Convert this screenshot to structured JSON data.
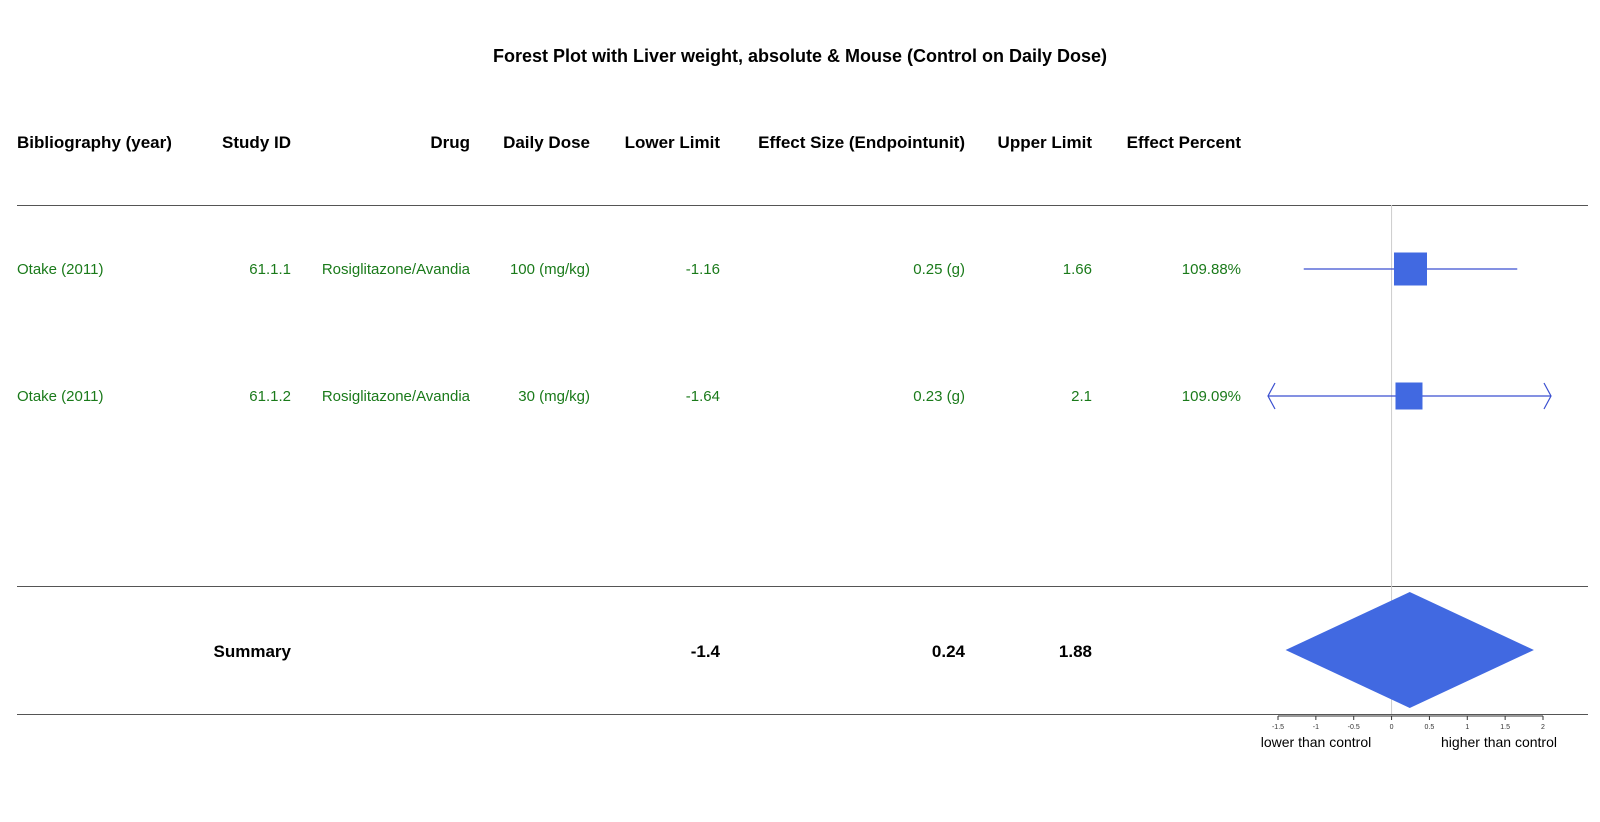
{
  "title": "Forest Plot with Liver weight, absolute & Mouse (Control on Daily Dose)",
  "columns": {
    "bibliography": "Bibliography (year)",
    "study_id": "Study ID",
    "drug": "Drug",
    "daily_dose": "Daily Dose",
    "lower_limit": "Lower Limit",
    "effect_size": "Effect Size (Endpointunit)",
    "upper_limit": "Upper Limit",
    "effect_percent": "Effect Percent"
  },
  "rows": [
    {
      "bibliography": "Otake (2011)",
      "study_id": "61.1.1",
      "drug": "Rosiglitazone/Avandia",
      "daily_dose": "100 (mg/kg)",
      "lower_limit": "-1.16",
      "effect_size": "0.25 (g)",
      "upper_limit": "1.66",
      "effect_percent": "109.88%"
    },
    {
      "bibliography": "Otake (2011)",
      "study_id": "61.1.2",
      "drug": "Rosiglitazone/Avandia",
      "daily_dose": "30 (mg/kg)",
      "lower_limit": "-1.64",
      "effect_size": "0.23 (g)",
      "upper_limit": "2.1",
      "effect_percent": "109.09%"
    }
  ],
  "summary": {
    "label": "Summary",
    "lower_limit": "-1.4",
    "effect_size": "0.24",
    "upper_limit": "1.88"
  },
  "axis_labels": {
    "lower": "lower than control",
    "higher": "higher than control"
  },
  "colors": {
    "marker": "#4169e1",
    "line": "#3a4fd0",
    "text_green": "#1a7a1a"
  },
  "chart_data": {
    "type": "forest",
    "title": "Forest Plot with Liver weight, absolute & Mouse (Control on Daily Dose)",
    "xlim": [
      -1.5,
      2
    ],
    "ticks": [
      -1.5,
      -1,
      -0.5,
      0,
      0.5,
      1,
      1.5,
      2
    ],
    "tick_labels": [
      "-1.5",
      "-1",
      "-0.5",
      "0",
      "0.5",
      "1",
      "1.5",
      "2"
    ],
    "reference_line": 0,
    "studies": [
      {
        "estimate": 0.25,
        "lower": -1.16,
        "upper": 1.66,
        "clipped_left": false,
        "clipped_right": false
      },
      {
        "estimate": 0.23,
        "lower": -1.64,
        "upper": 2.1,
        "clipped_left": true,
        "clipped_right": true
      }
    ],
    "summary": {
      "estimate": 0.24,
      "lower": -1.4,
      "upper": 1.88
    }
  }
}
